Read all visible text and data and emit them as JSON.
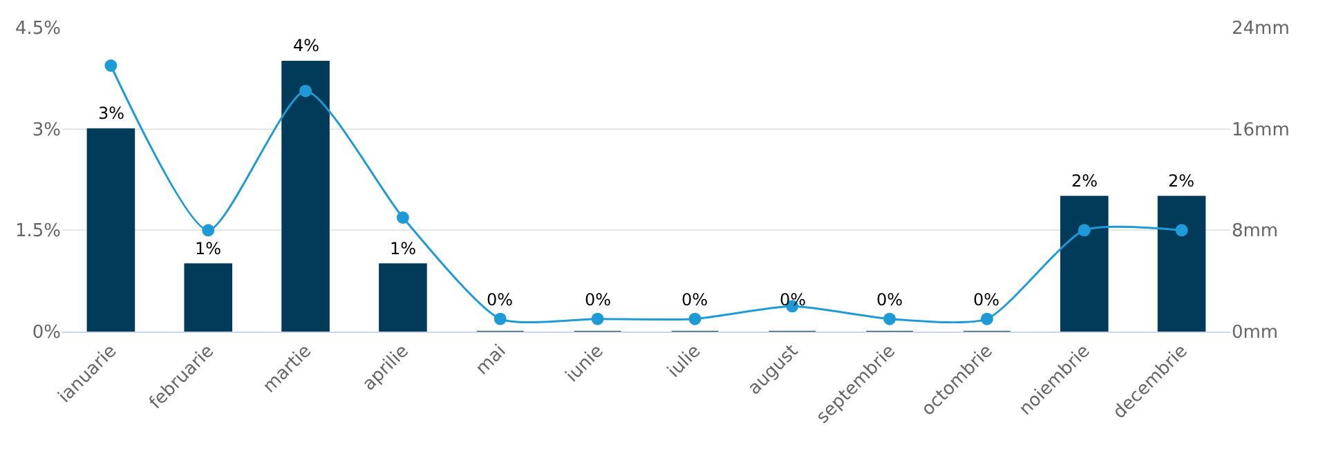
{
  "chart_data": {
    "type": "bar",
    "categories": [
      "ianuarie",
      "februarie",
      "martie",
      "aprilie",
      "mai",
      "iunie",
      "iulie",
      "august",
      "septembrie",
      "octombrie",
      "noiembrie",
      "decembrie"
    ],
    "series": [
      {
        "color": "#023a5a",
        "values": [
          3,
          1,
          4,
          1,
          0,
          0,
          0,
          0,
          0,
          0,
          2,
          2
        ],
        "value_labels": [
          "3%",
          "1%",
          "4%",
          "1%",
          "0%",
          "0%",
          "0%",
          "0%",
          "0%",
          "0%",
          "2%",
          "2%"
        ]
      },
      {
        "type": "line",
        "axis": "y2",
        "color": "#1e9bd7",
        "marker": "circle",
        "values": [
          21,
          8,
          19,
          9,
          1,
          1,
          1,
          2,
          1,
          1,
          8,
          8
        ]
      }
    ],
    "ylim": [
      0,
      4.5
    ],
    "yticks": [
      {
        "value": 0,
        "label": "0%"
      },
      {
        "value": 1.5,
        "label": "1.5%"
      },
      {
        "value": 3,
        "label": "3%"
      },
      {
        "value": 4.5,
        "label": "4.5%"
      }
    ],
    "y2lim": [
      0,
      24
    ],
    "y2ticks": [
      {
        "value": 0,
        "label": "0mm"
      },
      {
        "value": 8,
        "label": "8mm"
      },
      {
        "value": 16,
        "label": "16mm"
      },
      {
        "value": 24,
        "label": "24mm"
      }
    ],
    "grid": "y"
  }
}
